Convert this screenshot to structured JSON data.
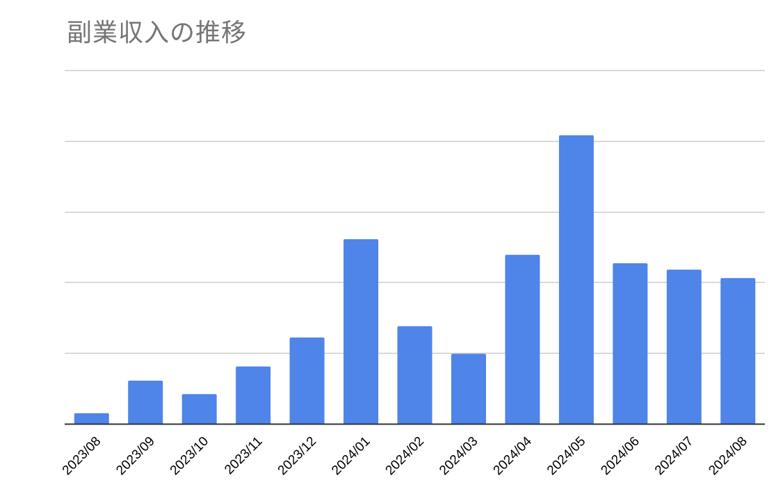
{
  "title": "副業収入の推移",
  "colors": {
    "bar": "#4f84e8",
    "grid": "#cccccc",
    "axis": "#333333",
    "title": "#757575"
  },
  "chart_data": {
    "type": "bar",
    "title": "副業収入の推移",
    "xlabel": "",
    "ylabel": "",
    "categories": [
      "2023/08",
      "2023/09",
      "2023/10",
      "2023/11",
      "2023/12",
      "2024/01",
      "2024/02",
      "2024/03",
      "2024/04",
      "2024/05",
      "2024/06",
      "2024/07",
      "2024/08"
    ],
    "values": [
      0.15,
      0.61,
      0.42,
      0.81,
      1.22,
      2.61,
      1.38,
      0.99,
      2.39,
      4.08,
      2.27,
      2.18,
      2.06
    ],
    "ylim": [
      0,
      5
    ],
    "yticks": [
      0,
      1,
      2,
      3,
      4,
      5
    ],
    "ytick_labels_visible": false,
    "grid": true,
    "legend": "none"
  }
}
